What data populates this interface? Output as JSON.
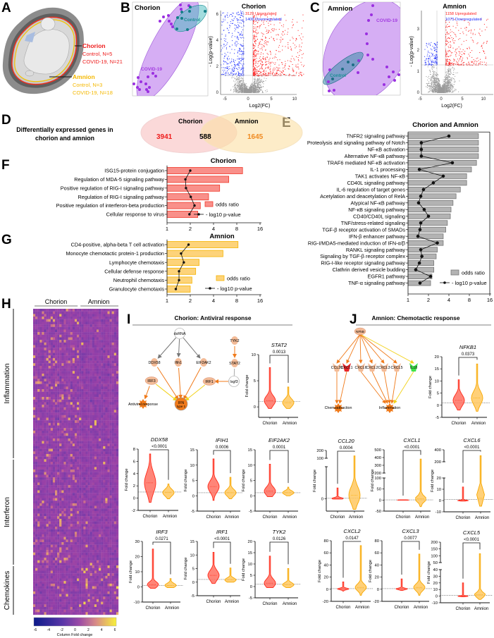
{
  "panel_labels": [
    "A",
    "B",
    "C",
    "D",
    "E",
    "F",
    "G",
    "H",
    "I",
    "J"
  ],
  "panel_a": {
    "chorion_title": "Chorion",
    "chorion_control": "Control, N=5",
    "chorion_covid": "COVID-19, N=21",
    "amnion_title": "Amnion",
    "amnion_control": "Control, N=3",
    "amnion_covid": "COVID-19, N=18"
  },
  "panel_b": {
    "title": "Chorion",
    "covid_label": "COVID-19",
    "control_label": "Control"
  },
  "panel_c": {
    "title": "Amnion",
    "covid_label": "COVID-19",
    "control_label": "Control"
  },
  "volcano": [
    {
      "title": "Chorion",
      "up": "3129 Upregulated",
      "down": "1400 Downregulated",
      "xlabel": "Log2(FC)",
      "ylabel": "- Log(p-value)",
      "xticks": [
        -5,
        0,
        5,
        10
      ],
      "yticks": [
        0,
        2,
        4,
        6
      ]
    },
    {
      "title": "Amnion",
      "up": "1158 Upregulated",
      "down": "1075 Downregulated",
      "xlabel": "Log2(FC)",
      "ylabel": "- Log(p-value)",
      "xticks": [
        -5,
        0,
        5,
        10
      ],
      "yticks": [
        0,
        1,
        2,
        3
      ]
    }
  ],
  "panel_d": {
    "heading_line1": "Differentially expressed genes in",
    "heading_line2": "chorion and amnion",
    "chorion_label": "Chorion",
    "amnion_label": "Amnion",
    "chorion_only": "3941",
    "shared": "588",
    "amnion_only": "1645"
  },
  "colors": {
    "chorion": "#ee1c1c",
    "amnion": "#f5b800",
    "up": "#ff1a1a",
    "down": "#1a2cff",
    "covid": "#a23be0",
    "control": "#1d8f95"
  },
  "chart_data": [
    {
      "id": "E",
      "type": "bar",
      "title": "Chorion and Amnion",
      "xscale": "log2",
      "xticks": [
        1,
        2,
        4,
        8,
        16
      ],
      "legend": [
        "odds ratio",
        "- log10 p-value"
      ],
      "legend_position": "bottom-right",
      "categories": [
        "TNFR2 signaling pathway",
        "Proteolysis and signaling pathway of Notch",
        "NF-κB activation",
        "Alternative NF-κB pathway",
        "TRAF6 mediated NF-κB activation",
        "IL-1 processing",
        "TAK1 activates NF-κB",
        "CD40L signaling pathway",
        "IL-6 regulation of target genes",
        "Acetylation and deacetylation of RelA",
        "Atypical NF-κB pathway",
        "NF-κB signaling pathway",
        "CD40/CD40L signaling",
        "TNF/stress-related signaling",
        "TGF-β receptor activation of SMADs",
        "IFN-β enhancer pathway",
        "RIG-I/MDA5-mediated induction of IFN-α/β",
        "RANKL signaling pathway",
        "Signaling by TGF-β receptor complex",
        "RIG-I-like receptor signaling pathway",
        "Clathrin derived vesicle budding",
        "EGFR1 pathway",
        "TNF-α signaling pathway"
      ],
      "series": [
        {
          "name": "odds ratio",
          "values": [
            10.9,
            10.9,
            10.9,
            10.9,
            10.2,
            8.6,
            7.3,
            7.3,
            5.9,
            5.1,
            4.6,
            4.3,
            4.2,
            3.8,
            3.6,
            3.3,
            3.3,
            2.7,
            2.6,
            2.4,
            2.4,
            2.25,
            2.15
          ]
        },
        {
          "name": "- log10 p-value",
          "values": [
            4.0,
            1.57,
            1.57,
            1.57,
            4.5,
            1.47,
            3.3,
            2.36,
            1.69,
            1.54,
            1.43,
            1.73,
            2.0,
            1.54,
            1.5,
            1.4,
            2.7,
            1.54,
            1.6,
            1.47,
            1.3,
            2.15,
            1.5
          ]
        }
      ]
    },
    {
      "id": "F",
      "type": "bar",
      "title": "Chorion",
      "xscale": "log2",
      "xticks": [
        1,
        2,
        4,
        8,
        16
      ],
      "legend": [
        "odds ratio",
        "- log10 p-value"
      ],
      "legend_position": "bottom-right",
      "categories": [
        "ISG15-protein conjugation",
        "Regulation of MDA-5 signaling pathway",
        "Positive regulation of RIG-I signaling pathway",
        "Regulation of RIG-I signaling pathway",
        "Positive regulation of interferon-beta production",
        "Cellular response to virus"
      ],
      "series": [
        {
          "name": "odds ratio",
          "values": [
            9.5,
            6.3,
            4.8,
            3.45,
            2.7,
            2.5
          ]
        },
        {
          "name": "- log10 p-value",
          "values": [
            2.0,
            1.73,
            1.76,
            2.03,
            2.27,
            1.95
          ]
        }
      ]
    },
    {
      "id": "G",
      "type": "bar",
      "title": "Amnion",
      "xscale": "log2",
      "xticks": [
        1,
        2,
        4,
        8,
        16
      ],
      "legend": [
        "odds ratio",
        "- log10 p-value"
      ],
      "legend_position": "bottom-right",
      "categories": [
        "CD4-positive, alpha-beta T cell activation",
        "Monocyte chemotactic protein-1 production",
        "Lymphocyte chemotaxis",
        "Cellular defense response",
        "Neutrophil chemotaxis",
        "Granulocyte chemotaxis"
      ],
      "series": [
        {
          "name": "odds ratio",
          "values": [
            8.3,
            5.3,
            2.6,
            2.35,
            2.1,
            2.0
          ]
        },
        {
          "name": "- log10 p-value",
          "values": [
            1.9,
            1.52,
            1.65,
            1.43,
            1.43,
            1.3
          ]
        }
      ]
    },
    {
      "id": "H",
      "type": "heatmap",
      "column_groups": [
        "Chorion",
        "Amnion"
      ],
      "row_groups": [
        "Inflammation",
        "Interferon",
        "Chemokines"
      ],
      "colorbar_label": "Column Fold change",
      "colorbar_ticks": [
        -6,
        -4,
        -2,
        0,
        2,
        4,
        6
      ]
    },
    {
      "id": "IJ",
      "type": "violin",
      "categories": [
        "Chorion",
        "Amnion"
      ],
      "ylabel": "Fold change",
      "plots": [
        {
          "gene": "STAT2",
          "p": "0.0013",
          "yticks": [
            0,
            5,
            10
          ],
          "ylim": [
            -2,
            10
          ],
          "chorion": {
            "min": -0.3,
            "med": 1.2,
            "max": 7.5,
            "spread": 1
          },
          "amnion": {
            "min": -0.3,
            "med": 0.8,
            "max": 3.8,
            "spread": 0.8
          }
        },
        {
          "gene": "DDX58",
          "p": "<0.0001",
          "yticks": [
            -2,
            0,
            2,
            4,
            6,
            8
          ],
          "ylim": [
            -2,
            8
          ],
          "chorion": {
            "min": -0.7,
            "med": 2.5,
            "max": 7.2,
            "spread": 1.8
          },
          "amnion": {
            "min": -0.1,
            "med": 0.9,
            "max": 2.3,
            "spread": 0.6
          }
        },
        {
          "gene": "IFIH1",
          "p": "0.0006",
          "yticks": [
            -5,
            0,
            5,
            10,
            15
          ],
          "ylim": [
            -5,
            15
          ],
          "chorion": {
            "min": -1.5,
            "med": 3,
            "max": 12,
            "spread": 2
          },
          "amnion": {
            "min": -1,
            "med": 1,
            "max": 6,
            "spread": 1.2
          }
        },
        {
          "gene": "EIF2AK2",
          "p": "0.0001",
          "yticks": [
            -5,
            0,
            5,
            10,
            15
          ],
          "ylim": [
            -5,
            15
          ],
          "chorion": {
            "min": -0.3,
            "med": 1.5,
            "max": 10.3,
            "spread": 1.5
          },
          "amnion": {
            "min": 0,
            "med": 1,
            "max": 2.8,
            "spread": 0.7
          }
        },
        {
          "gene": "IRF3",
          "p": "0.0271",
          "yticks": [
            -10,
            0,
            10,
            20,
            30
          ],
          "ylim": [
            -10,
            30
          ],
          "chorion": {
            "min": -1,
            "med": 1.5,
            "max": 25,
            "spread": 2
          },
          "amnion": {
            "min": -0.5,
            "med": 1,
            "max": 5.5,
            "spread": 1.5
          }
        },
        {
          "gene": "IRF1",
          "p": "<0.0001",
          "yticks": [
            -5,
            0,
            5,
            10,
            15
          ],
          "ylim": [
            -5,
            15
          ],
          "chorion": {
            "min": -0.5,
            "med": 2.5,
            "max": 11,
            "spread": 2
          },
          "amnion": {
            "min": 0,
            "med": 0.8,
            "max": 5.2,
            "spread": 0.8
          }
        },
        {
          "gene": "TYK2",
          "p": "0.0126",
          "yticks": [
            -5,
            0,
            5,
            10,
            15,
            20
          ],
          "ylim": [
            -5,
            20
          ],
          "chorion": {
            "min": -0.5,
            "med": 1.5,
            "max": 13.5,
            "spread": 2
          },
          "amnion": {
            "min": -0.5,
            "med": 0.8,
            "max": 8,
            "spread": 1
          }
        },
        {
          "gene": "NFKB1",
          "p": "0.0373",
          "yticks": [
            -5,
            0,
            5,
            10,
            15,
            20
          ],
          "ylim": [
            -5,
            20
          ],
          "chorion": {
            "min": -2,
            "med": 2,
            "max": 10.5,
            "spread": 2.5
          },
          "amnion": {
            "min": -2.5,
            "med": 3,
            "max": 17,
            "spread": 3
          }
        },
        {
          "gene": "CCL20",
          "p": "0.0004",
          "yticks": [
            0
          ],
          "ylim": [
            -35,
            90
          ],
          "upper_ticks": [
            100,
            200
          ],
          "chorion": {
            "min": -1,
            "med": 0.5,
            "max": 30,
            "spread": 3
          },
          "amnion": {
            "min": -30,
            "med": 10,
            "max": 130,
            "spread": 25
          }
        },
        {
          "gene": "CXCL1",
          "p": "<0.0001",
          "yticks": [
            -50,
            0,
            50,
            100
          ],
          "ylim": [
            -50,
            100
          ],
          "upper_ticks": [
            200,
            300,
            400,
            500
          ],
          "chorion": {
            "min": -1,
            "med": 0,
            "max": 1,
            "spread": 1
          },
          "amnion": {
            "min": -30,
            "med": 5,
            "max": 380,
            "spread": 15
          }
        },
        {
          "gene": "CXCL6",
          "p": "<0.0001",
          "yticks": [
            -10,
            0,
            10,
            20
          ],
          "ylim": [
            -10,
            20
          ],
          "upper_ticks": [
            200,
            400
          ],
          "chorion": {
            "min": -0.5,
            "med": 0,
            "max": 12,
            "spread": 0.4
          },
          "amnion": {
            "min": -5,
            "med": 2,
            "max": 300,
            "spread": 4
          }
        },
        {
          "gene": "CXCL2",
          "p": "0.0147",
          "yticks": [
            -20,
            0,
            20,
            40,
            60,
            80
          ],
          "ylim": [
            -20,
            80
          ],
          "chorion": {
            "min": -3,
            "med": 0.5,
            "max": 12,
            "spread": 1.5
          },
          "amnion": {
            "min": -10,
            "med": 3,
            "max": 72,
            "spread": 6
          }
        },
        {
          "gene": "CXCL3",
          "p": "0.0077",
          "yticks": [
            -20,
            0,
            20,
            40,
            60,
            80
          ],
          "ylim": [
            -20,
            80
          ],
          "chorion": {
            "min": -2,
            "med": 0.5,
            "max": 17,
            "spread": 1.5
          },
          "amnion": {
            "min": -10,
            "med": 3,
            "max": 58,
            "spread": 6
          }
        },
        {
          "gene": "CXCL5",
          "p": "<0.0001",
          "yticks": [
            -10,
            0,
            10,
            20,
            30,
            40
          ],
          "ylim": [
            -10,
            40
          ],
          "upper_ticks": [
            50,
            100,
            150,
            200
          ],
          "chorion": {
            "min": -1,
            "med": 0,
            "max": 20,
            "spread": 0.6
          },
          "amnion": {
            "min": -5,
            "med": 2,
            "max": 115,
            "spread": 4
          }
        }
      ]
    }
  ],
  "panel_i": {
    "title": "Chorion: Antiviral response",
    "nodes": [
      "dsRNA",
      "DDX58",
      "Ifih1",
      "EIF2AK2",
      "TYK2",
      "STAT2",
      "Isgf3",
      "IRF1",
      "IRF3",
      "IFN",
      "type 1",
      "Antiviral response"
    ]
  },
  "panel_j": {
    "title": "Amnion: Chemotactic response",
    "nodes": [
      "NFkB",
      "CCL20",
      "CXCL1",
      "CXCL6",
      "CXCL2",
      "CXCL3",
      "CXCL5",
      "IL18",
      "Chemoattraction",
      "Inflammation"
    ]
  }
}
